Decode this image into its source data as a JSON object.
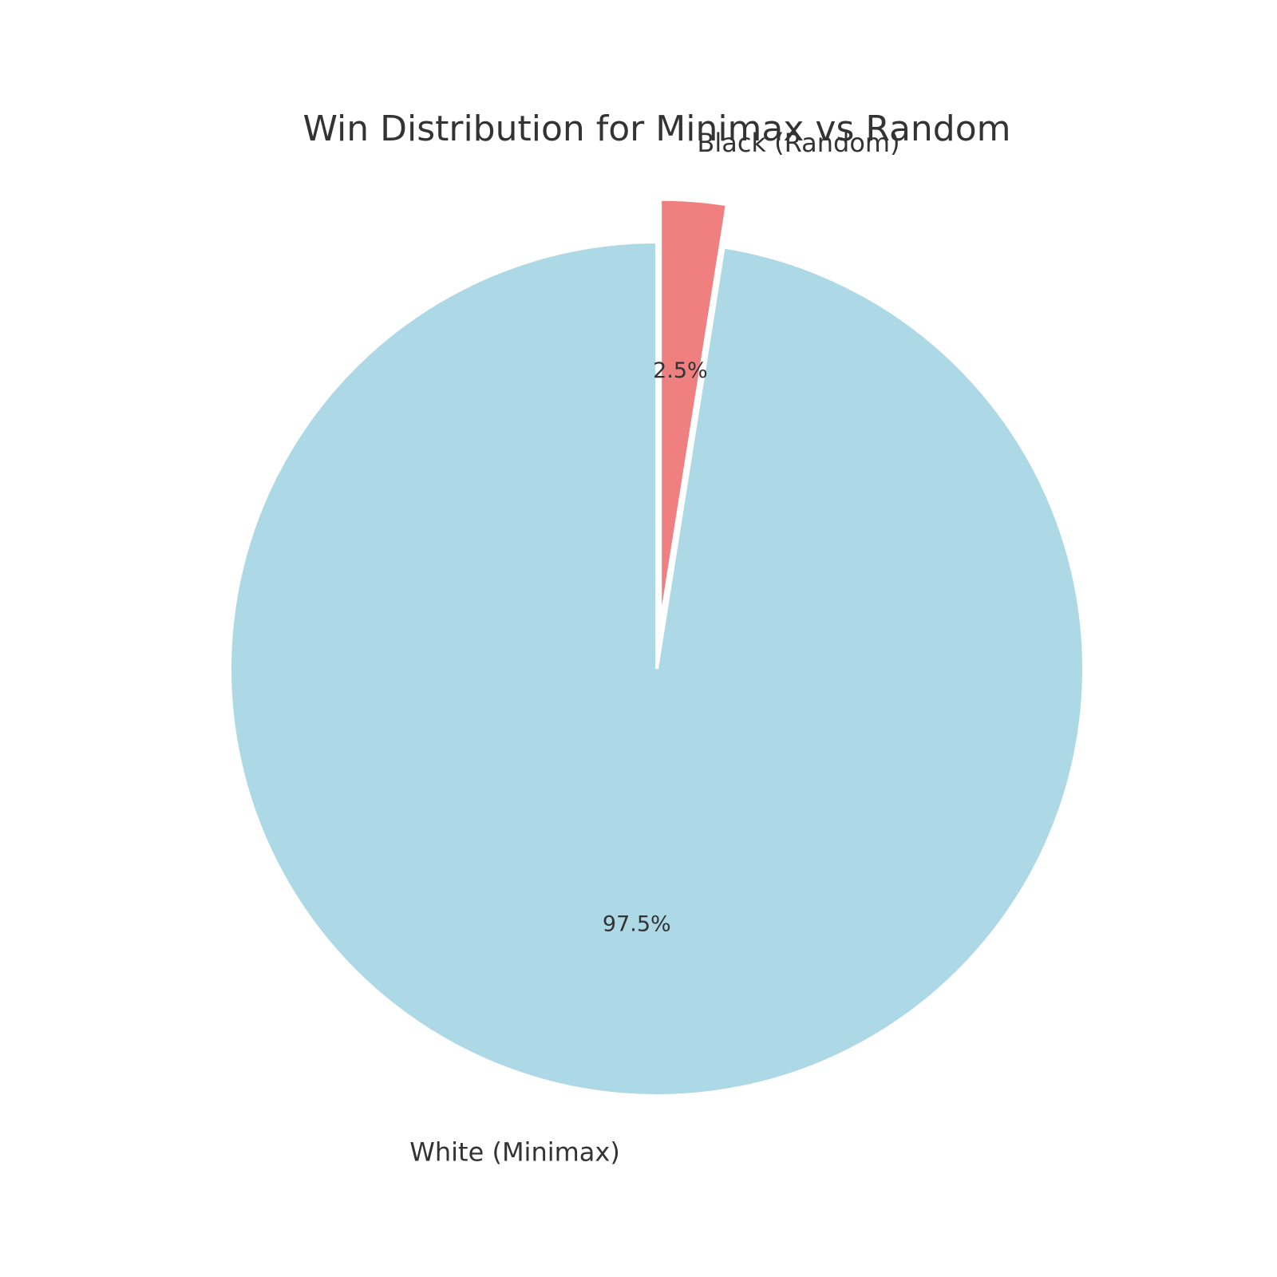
{
  "chart_data": {
    "type": "pie",
    "title": "Win Distribution for Minimax vs Random",
    "start_angle_deg": 90,
    "direction": "clockwise",
    "slices": [
      {
        "label": "Black (Random)",
        "value": 2.5,
        "pct_label": "2.5%",
        "color": "#f08080",
        "exploded": true
      },
      {
        "label": "White (Minimax)",
        "value": 97.5,
        "pct_label": "97.5%",
        "color": "#add8e6",
        "exploded": false
      }
    ]
  }
}
